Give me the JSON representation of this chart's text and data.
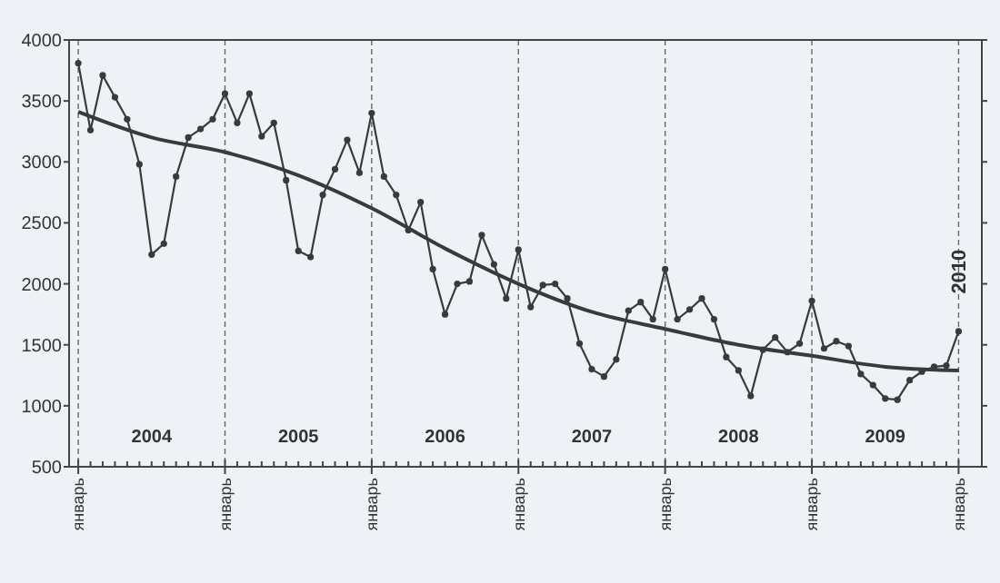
{
  "chart_data": {
    "type": "line",
    "categories": [
      "январь",
      null,
      null,
      null,
      null,
      null,
      null,
      null,
      null,
      null,
      null,
      null,
      "январь",
      null,
      null,
      null,
      null,
      null,
      null,
      null,
      null,
      null,
      null,
      null,
      "январь",
      null,
      null,
      null,
      null,
      null,
      null,
      null,
      null,
      null,
      null,
      null,
      "январь",
      null,
      null,
      null,
      null,
      null,
      null,
      null,
      null,
      null,
      null,
      null,
      "январь",
      null,
      null,
      null,
      null,
      null,
      null,
      null,
      null,
      null,
      null,
      null,
      "январь",
      null,
      null,
      null,
      null,
      null,
      null,
      null,
      null,
      null,
      null,
      null,
      "январь"
    ],
    "series": [
      {
        "color": "#3a3a3a",
        "values": [
          3810,
          3260,
          3710,
          3530,
          3350,
          2980,
          2240,
          2330,
          2880,
          3200,
          3270,
          3350,
          3560,
          3320,
          3560,
          3210,
          3320,
          2850,
          2270,
          2220,
          2730,
          2940,
          3180,
          2910,
          3400,
          2880,
          2730,
          2440,
          2670,
          2120,
          1750,
          2000,
          2020,
          2400,
          2160,
          1880,
          2280,
          1810,
          1990,
          2000,
          1880,
          1510,
          1300,
          1240,
          1380,
          1780,
          1850,
          1710,
          2120,
          1710,
          1790,
          1880,
          1710,
          1400,
          1290,
          1080,
          1460,
          1560,
          1440,
          1510,
          1860,
          1470,
          1530,
          1490,
          1260,
          1170,
          1060,
          1050,
          1210,
          1280,
          1320,
          1330,
          1610
        ]
      },
      {
        "type": "line",
        "color": "#3a3a3a",
        "marker": "none",
        "values": [
          3410,
          null,
          null,
          null,
          null,
          null,
          3200,
          null,
          null,
          null,
          null,
          null,
          3080,
          null,
          null,
          null,
          null,
          null,
          2890,
          null,
          null,
          null,
          null,
          null,
          2620,
          null,
          null,
          null,
          null,
          null,
          2290,
          null,
          null,
          null,
          null,
          null,
          2000,
          null,
          null,
          null,
          null,
          null,
          1770,
          null,
          null,
          null,
          null,
          null,
          1630,
          null,
          null,
          null,
          null,
          null,
          1500,
          null,
          null,
          null,
          null,
          null,
          1410,
          null,
          null,
          null,
          null,
          null,
          1320,
          null,
          null,
          null,
          null,
          null,
          1290
        ]
      }
    ],
    "ylim": [
      500,
      4000
    ],
    "yticks": [
      500,
      1000,
      1500,
      2000,
      2500,
      3000,
      3500,
      4000
    ],
    "grid": "x",
    "marker": "circle",
    "line_style": "solid",
    "annotations": [
      "2004",
      "2005",
      "2006",
      "2007",
      "2008",
      "2009",
      "2010"
    ]
  }
}
